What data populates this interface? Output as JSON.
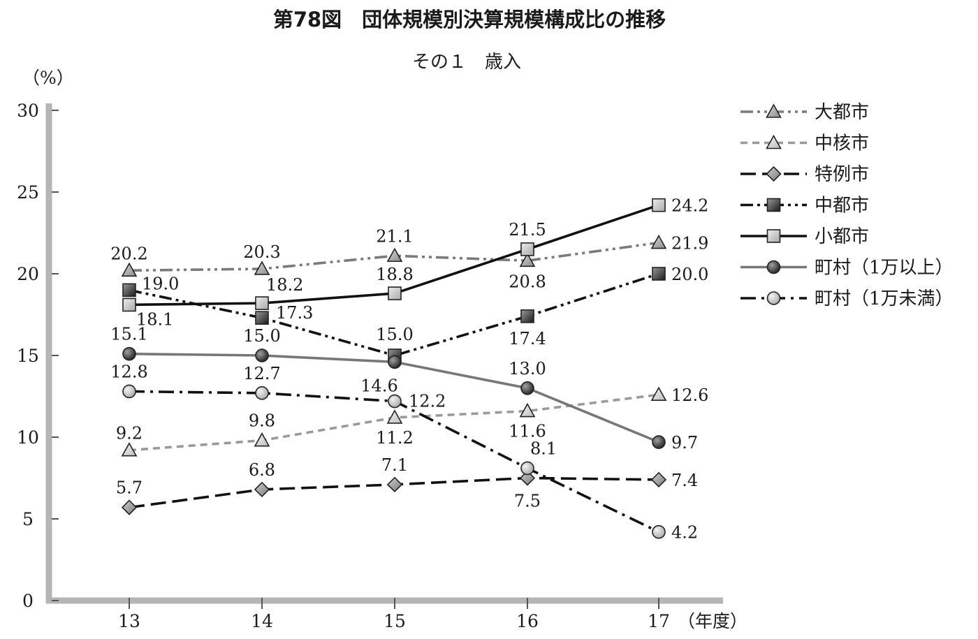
{
  "chart_data": {
    "type": "line",
    "title": "第78図　団体規模別決算規模構成比の推移",
    "subtitle": "その１　歳入",
    "ylabel": "（%）",
    "xlabel": "（年度）",
    "categories": [
      "13",
      "14",
      "15",
      "16",
      "17"
    ],
    "ylim": [
      0,
      30
    ],
    "yticks": [
      "0",
      "5",
      "10",
      "15",
      "20",
      "25",
      "30"
    ],
    "grid": false,
    "legend": "right",
    "series": [
      {
        "name": "大都市",
        "values": [
          20.2,
          20.3,
          21.1,
          20.8,
          21.9
        ],
        "labels": [
          "20.2",
          "20.3",
          "21.1",
          "20.8",
          "21.9"
        ],
        "marker": "triangle",
        "line": "dash-dot-dot",
        "color": "#7a7a7a"
      },
      {
        "name": "中核市",
        "values": [
          9.2,
          9.8,
          11.2,
          11.6,
          12.6
        ],
        "labels": [
          "9.2",
          "9.8",
          "11.2",
          "11.6",
          "12.6"
        ],
        "marker": "triangle",
        "line": "dashed",
        "color": "#9a9a9a"
      },
      {
        "name": "特例市",
        "values": [
          5.7,
          6.8,
          7.1,
          7.5,
          7.4
        ],
        "labels": [
          "5.7",
          "6.8",
          "7.1",
          "7.5",
          "7.4"
        ],
        "marker": "diamond",
        "line": "long-dash",
        "color": "#111111"
      },
      {
        "name": "中都市",
        "values": [
          19.0,
          17.3,
          15.0,
          17.4,
          20.0
        ],
        "labels": [
          "19.0",
          "17.3",
          "15.0",
          "17.4",
          "20.0"
        ],
        "marker": "square-dark",
        "line": "dash-dot-dot",
        "color": "#111111"
      },
      {
        "name": "小都市",
        "values": [
          18.1,
          18.2,
          18.8,
          21.5,
          24.2
        ],
        "labels": [
          "18.1",
          "18.2",
          "18.8",
          "21.5",
          "24.2"
        ],
        "marker": "square-light",
        "line": "solid",
        "color": "#111111"
      },
      {
        "name": "町村（1万以上）",
        "values": [
          15.1,
          15.0,
          14.6,
          13.0,
          9.7
        ],
        "labels": [
          "15.1",
          "15.0",
          "14.6",
          "13.0",
          "9.7"
        ],
        "marker": "circle-dark",
        "line": "solid",
        "color": "#777777"
      },
      {
        "name": "町村（1万未満）",
        "values": [
          12.8,
          12.7,
          12.2,
          8.1,
          4.2
        ],
        "labels": [
          "12.8",
          "12.7",
          "12.2",
          "8.1",
          "4.2"
        ],
        "marker": "circle-light",
        "line": "dash-dot",
        "color": "#111111"
      }
    ]
  }
}
